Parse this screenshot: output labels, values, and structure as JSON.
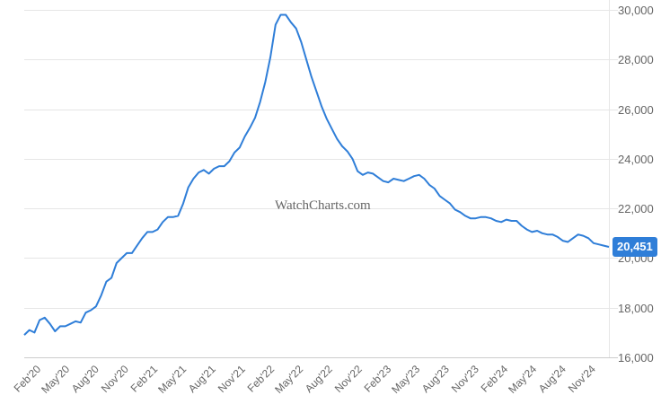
{
  "chart_data": {
    "type": "line",
    "title": "",
    "xlabel": "",
    "ylabel": "",
    "ylim": [
      16000,
      30000
    ],
    "grid": true,
    "legend": "none",
    "yticks": [
      "16,000",
      "18,000",
      "20,000",
      "22,000",
      "24,000",
      "26,000",
      "28,000",
      "30,000"
    ],
    "xticks": [
      "Feb'20",
      "May'20",
      "Aug'20",
      "Nov'20",
      "Feb'21",
      "May'21",
      "Aug'21",
      "Nov'21",
      "Feb'22",
      "May'22",
      "Aug'22",
      "Nov'22",
      "Feb'23",
      "May'23",
      "Aug'23",
      "Nov'23",
      "Feb'24",
      "May'24",
      "Aug'24",
      "Nov'24"
    ],
    "series": [
      {
        "name": "Price",
        "color": "#2f7ed8",
        "values": [
          16900,
          17100,
          17000,
          17500,
          17600,
          17350,
          17050,
          17250,
          17250,
          17350,
          17450,
          17400,
          17800,
          17900,
          18050,
          18500,
          19050,
          19200,
          19800,
          20000,
          20200,
          20200,
          20500,
          20800,
          21050,
          21050,
          21150,
          21450,
          21650,
          21650,
          21700,
          22200,
          22850,
          23200,
          23450,
          23550,
          23400,
          23600,
          23700,
          23700,
          23900,
          24250,
          24450,
          24900,
          25250,
          25650,
          26300,
          27100,
          28100,
          29400,
          29800,
          29800,
          29500,
          29250,
          28700,
          28000,
          27300,
          26700,
          26100,
          25600,
          25200,
          24800,
          24500,
          24300,
          24000,
          23500,
          23350,
          23450,
          23400,
          23250,
          23100,
          23050,
          23200,
          23150,
          23100,
          23200,
          23300,
          23350,
          23200,
          22950,
          22800,
          22500,
          22350,
          22200,
          21950,
          21850,
          21700,
          21600,
          21600,
          21650,
          21650,
          21600,
          21500,
          21450,
          21550,
          21500,
          21500,
          21300,
          21150,
          21050,
          21100,
          21000,
          20950,
          20950,
          20850,
          20700,
          20650,
          20800,
          20950,
          20900,
          20800,
          20600,
          20550,
          20500,
          20451
        ]
      }
    ],
    "last_value_label": "20,451"
  },
  "watermark": "WatchCharts.com"
}
